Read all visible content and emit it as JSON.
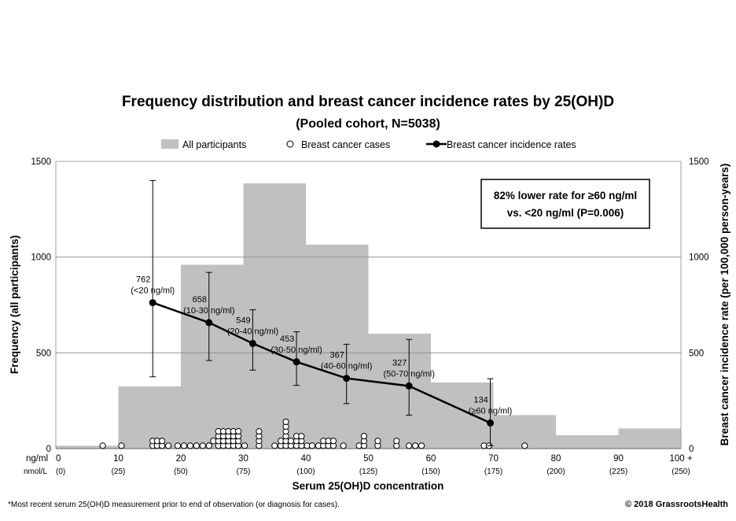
{
  "chart_data": {
    "type": "bar",
    "title": "Frequency distribution and breast cancer incidence rates by 25(OH)D",
    "subtitle": "(Pooled cohort, N=5038)",
    "legend": {
      "placement": "top",
      "entries": [
        "All participants",
        "Breast cancer cases",
        "Breast cancer incidence rates"
      ]
    },
    "xlabel": "Serum 25(OH)D concentration",
    "ylabel_left": "Frequency (all participants)",
    "ylabel_right": "Breast cancer incidence rate (per 100,000 person-years)",
    "ylim": [
      0,
      1500
    ],
    "yticks": [
      "0",
      "500",
      "1000",
      "1500"
    ],
    "xlim": [
      0,
      100
    ],
    "x_unit_label": "ng/ml",
    "x_alt_unit_label": "nmol/L",
    "xticks": [
      {
        "ng": "0",
        "nmol": "(0)"
      },
      {
        "ng": "10",
        "nmol": "(25)"
      },
      {
        "ng": "20",
        "nmol": "(50)"
      },
      {
        "ng": "30",
        "nmol": "(75)"
      },
      {
        "ng": "40",
        "nmol": "(100)"
      },
      {
        "ng": "50",
        "nmol": "(125)"
      },
      {
        "ng": "60",
        "nmol": "(150)"
      },
      {
        "ng": "70",
        "nmol": "(175)"
      },
      {
        "ng": "80",
        "nmol": "(200)"
      },
      {
        "ng": "90",
        "nmol": "(225)"
      },
      {
        "ng": "100 +",
        "nmol": "(250)"
      }
    ],
    "grid": true,
    "histogram": {
      "name": "All participants",
      "color": "#c0c0c0",
      "bins": [
        {
          "from": 0,
          "to": 10,
          "value": 15
        },
        {
          "from": 10,
          "to": 20,
          "value": 325
        },
        {
          "from": 20,
          "to": 30,
          "value": 960
        },
        {
          "from": 30,
          "to": 40,
          "value": 1385
        },
        {
          "from": 40,
          "to": 50,
          "value": 1065
        },
        {
          "from": 50,
          "to": 60,
          "value": 600
        },
        {
          "from": 60,
          "to": 70,
          "value": 345
        },
        {
          "from": 70,
          "to": 80,
          "value": 175
        },
        {
          "from": 80,
          "to": 90,
          "value": 70
        },
        {
          "from": 90,
          "to": 100,
          "value": 105
        }
      ]
    },
    "incidence": {
      "name": "Breast cancer incidence rates",
      "color": "#000000",
      "points": [
        {
          "x": 15.5,
          "y": 762,
          "lo": 375,
          "hi": 1400,
          "value": "762",
          "range": "(<20 ng/ml)"
        },
        {
          "x": 24.5,
          "y": 658,
          "lo": 460,
          "hi": 920,
          "value": "658",
          "range": "(10-30 ng/ml)"
        },
        {
          "x": 31.5,
          "y": 549,
          "lo": 410,
          "hi": 725,
          "value": "549",
          "range": "(20-40 ng/ml)"
        },
        {
          "x": 38.5,
          "y": 453,
          "lo": 330,
          "hi": 610,
          "value": "453",
          "range": "(30-50 ng/ml)"
        },
        {
          "x": 46.5,
          "y": 367,
          "lo": 235,
          "hi": 545,
          "value": "367",
          "range": "(40-60 ng/ml)"
        },
        {
          "x": 56.5,
          "y": 327,
          "lo": 175,
          "hi": 570,
          "value": "327",
          "range": "(50-70 ng/ml)"
        },
        {
          "x": 69.5,
          "y": 134,
          "lo": 15,
          "hi": 365,
          "value": "134",
          "range": "(≥60 ng/ml)"
        }
      ]
    },
    "cases": {
      "name": "Breast cancer cases",
      "points": [
        [
          7.5,
          15
        ],
        [
          10.5,
          15
        ],
        [
          15.5,
          15
        ],
        [
          15.5,
          40
        ],
        [
          16.2,
          15
        ],
        [
          16.2,
          40
        ],
        [
          17,
          15
        ],
        [
          17,
          40
        ],
        [
          18,
          15
        ],
        [
          19.5,
          15
        ],
        [
          20.5,
          15
        ],
        [
          21.5,
          15
        ],
        [
          22.5,
          15
        ],
        [
          23.5,
          15
        ],
        [
          24.5,
          15
        ],
        [
          25.2,
          40
        ],
        [
          26,
          15
        ],
        [
          26,
          40
        ],
        [
          26,
          65
        ],
        [
          26,
          90
        ],
        [
          26.8,
          15
        ],
        [
          26.8,
          40
        ],
        [
          26.8,
          65
        ],
        [
          26.8,
          90
        ],
        [
          27.6,
          15
        ],
        [
          27.6,
          40
        ],
        [
          27.6,
          65
        ],
        [
          27.6,
          90
        ],
        [
          28.4,
          15
        ],
        [
          28.4,
          40
        ],
        [
          28.4,
          65
        ],
        [
          28.4,
          90
        ],
        [
          29.2,
          15
        ],
        [
          29.2,
          40
        ],
        [
          29.2,
          65
        ],
        [
          29.2,
          90
        ],
        [
          30.2,
          15
        ],
        [
          32.5,
          15
        ],
        [
          32.5,
          40
        ],
        [
          32.5,
          65
        ],
        [
          32.5,
          90
        ],
        [
          35,
          15
        ],
        [
          36,
          15
        ],
        [
          36,
          40
        ],
        [
          36.8,
          15
        ],
        [
          36.8,
          40
        ],
        [
          36.8,
          65
        ],
        [
          36.8,
          90
        ],
        [
          36.8,
          115
        ],
        [
          36.8,
          140
        ],
        [
          37.6,
          15
        ],
        [
          37.6,
          40
        ],
        [
          38.5,
          15
        ],
        [
          38.5,
          40
        ],
        [
          38.5,
          65
        ],
        [
          39.3,
          15
        ],
        [
          39.3,
          40
        ],
        [
          39.3,
          65
        ],
        [
          40.2,
          15
        ],
        [
          41,
          15
        ],
        [
          42,
          15
        ],
        [
          42.8,
          15
        ],
        [
          42.8,
          40
        ],
        [
          43.6,
          15
        ],
        [
          43.6,
          40
        ],
        [
          44.4,
          15
        ],
        [
          44.4,
          40
        ],
        [
          46,
          15
        ],
        [
          48.5,
          15
        ],
        [
          49.3,
          15
        ],
        [
          49.3,
          40
        ],
        [
          49.3,
          65
        ],
        [
          51.5,
          15
        ],
        [
          51.5,
          40
        ],
        [
          54.5,
          15
        ],
        [
          54.5,
          40
        ],
        [
          56.5,
          15
        ],
        [
          57.5,
          15
        ],
        [
          58.5,
          15
        ],
        [
          68.5,
          15
        ],
        [
          69.3,
          15
        ],
        [
          75,
          15
        ]
      ]
    },
    "annotation": {
      "line1": "82% lower rate for ≥60 ng/ml",
      "line2": "vs. <20 ng/ml (P=0.006)"
    }
  },
  "footer": {
    "left": "*Most recent serum 25(OH)D measurement prior to end of observation (or diagnosis for cases).",
    "right": "© 2018 GrassrootsHealth"
  },
  "colors": {
    "histogram": "#c0c0c0",
    "line": "#000000",
    "grid": "#888888",
    "background": "#ffffff"
  }
}
